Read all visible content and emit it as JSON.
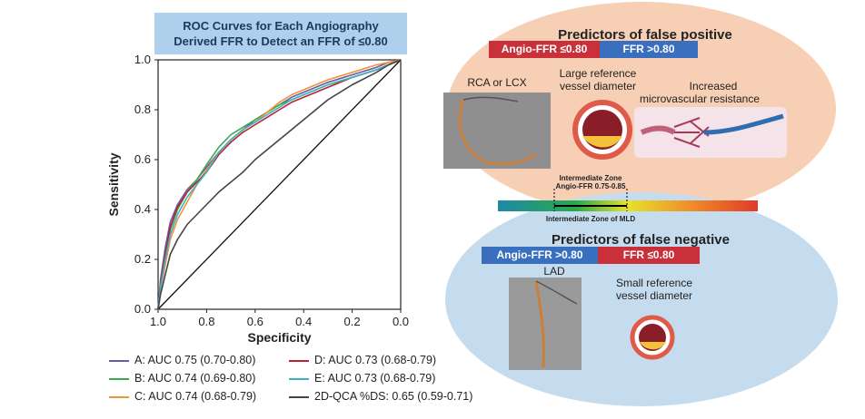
{
  "chart_data": {
    "type": "line",
    "title": [
      "ROC Curves for Each Angiography",
      "Derived FFR to Detect an FFR of ≤0.80"
    ],
    "xlabel": "Specificity",
    "ylabel": "Sensitivity",
    "xlim": [
      1.0,
      0.0
    ],
    "ylim": [
      0.0,
      1.0
    ],
    "x_ticks": [
      "1.0",
      "0.8",
      "0.6",
      "0.4",
      "0.2",
      "0.0"
    ],
    "y_ticks": [
      "0.0",
      "0.2",
      "0.4",
      "0.6",
      "0.8",
      "1.0"
    ],
    "grid": false,
    "legend_position": "bottom",
    "reference_line": true,
    "series": [
      {
        "name": "A: AUC 0.75 (0.70-0.80)",
        "color": "#6a5aa8",
        "x": [
          1.0,
          0.99,
          0.97,
          0.95,
          0.92,
          0.88,
          0.84,
          0.8,
          0.75,
          0.7,
          0.65,
          0.6,
          0.55,
          0.5,
          0.45,
          0.4,
          0.3,
          0.2,
          0.1,
          0.05,
          0.0
        ],
        "y": [
          0.0,
          0.12,
          0.25,
          0.35,
          0.42,
          0.48,
          0.52,
          0.57,
          0.63,
          0.68,
          0.72,
          0.76,
          0.79,
          0.82,
          0.85,
          0.87,
          0.91,
          0.94,
          0.97,
          0.99,
          1.0
        ]
      },
      {
        "name": "B: AUC 0.74 (0.69-0.80)",
        "color": "#3faa48",
        "x": [
          1.0,
          0.99,
          0.97,
          0.95,
          0.92,
          0.88,
          0.84,
          0.8,
          0.75,
          0.7,
          0.65,
          0.6,
          0.55,
          0.5,
          0.45,
          0.4,
          0.3,
          0.2,
          0.1,
          0.05,
          0.0
        ],
        "y": [
          0.0,
          0.1,
          0.22,
          0.32,
          0.4,
          0.47,
          0.52,
          0.58,
          0.65,
          0.7,
          0.73,
          0.76,
          0.79,
          0.82,
          0.84,
          0.86,
          0.9,
          0.93,
          0.96,
          0.98,
          1.0
        ]
      },
      {
        "name": "C: AUC 0.74 (0.68-0.79)",
        "color": "#f0923a",
        "x": [
          1.0,
          0.99,
          0.97,
          0.95,
          0.92,
          0.88,
          0.84,
          0.8,
          0.75,
          0.7,
          0.65,
          0.6,
          0.55,
          0.5,
          0.45,
          0.4,
          0.3,
          0.2,
          0.1,
          0.05,
          0.0
        ],
        "y": [
          0.0,
          0.08,
          0.18,
          0.28,
          0.36,
          0.43,
          0.5,
          0.56,
          0.63,
          0.68,
          0.72,
          0.75,
          0.79,
          0.83,
          0.86,
          0.88,
          0.92,
          0.95,
          0.98,
          0.99,
          1.0
        ]
      },
      {
        "name": "D: AUC 0.73 (0.68-0.79)",
        "color": "#b8232f",
        "x": [
          1.0,
          0.99,
          0.97,
          0.95,
          0.92,
          0.88,
          0.84,
          0.8,
          0.75,
          0.7,
          0.65,
          0.6,
          0.55,
          0.5,
          0.45,
          0.4,
          0.3,
          0.2,
          0.1,
          0.05,
          0.0
        ],
        "y": [
          0.0,
          0.1,
          0.22,
          0.33,
          0.41,
          0.47,
          0.51,
          0.55,
          0.62,
          0.67,
          0.71,
          0.74,
          0.77,
          0.8,
          0.83,
          0.85,
          0.89,
          0.93,
          0.96,
          0.98,
          1.0
        ]
      },
      {
        "name": "E: AUC 0.73 (0.68-0.79)",
        "color": "#3bb3c4",
        "x": [
          1.0,
          0.99,
          0.97,
          0.95,
          0.92,
          0.88,
          0.84,
          0.8,
          0.75,
          0.7,
          0.65,
          0.6,
          0.55,
          0.5,
          0.45,
          0.4,
          0.3,
          0.2,
          0.1,
          0.05,
          0.0
        ],
        "y": [
          0.0,
          0.09,
          0.2,
          0.3,
          0.38,
          0.45,
          0.5,
          0.55,
          0.63,
          0.68,
          0.72,
          0.75,
          0.78,
          0.81,
          0.84,
          0.86,
          0.9,
          0.93,
          0.96,
          0.98,
          1.0
        ]
      },
      {
        "name": "2D-QCA %DS: 0.65 (0.59-0.71)",
        "color": "#444444",
        "x": [
          1.0,
          0.99,
          0.97,
          0.95,
          0.92,
          0.88,
          0.84,
          0.8,
          0.75,
          0.7,
          0.65,
          0.6,
          0.55,
          0.5,
          0.45,
          0.4,
          0.3,
          0.2,
          0.1,
          0.05,
          0.0
        ],
        "y": [
          0.0,
          0.06,
          0.14,
          0.22,
          0.28,
          0.34,
          0.38,
          0.42,
          0.47,
          0.51,
          0.55,
          0.6,
          0.64,
          0.68,
          0.72,
          0.76,
          0.84,
          0.9,
          0.95,
          0.98,
          1.0
        ]
      }
    ]
  },
  "panels": {
    "fp_title": "Predictors of false positive",
    "fp_bar_left": "Angio-FFR ≤0.80",
    "fp_bar_right": "FFR >0.80",
    "fp_label_1": "RCA or LCX",
    "fp_label_2a": "Large reference",
    "fp_label_2b": "vessel diameter",
    "fp_label_3a": "Increased",
    "fp_label_3b": "microvascular resistance",
    "zone_label_1": "Intermediate Zone",
    "zone_label_2": "Angio-FFR 0.75-0.85",
    "zone_label_3": "Intermediate Zone of MLD",
    "fn_title": "Predictors of false negative",
    "fn_bar_left": "Angio-FFR >0.80",
    "fn_bar_right": "FFR ≤0.80",
    "fn_label_1": "LAD",
    "fn_label_2a": "Small reference",
    "fn_label_2b": "vessel diameter"
  },
  "colors": {
    "bar_red": "#c9303a",
    "bar_blue": "#3a6fbf",
    "fp_bg": "#f6cfb4",
    "fn_bg": "#c5dcee"
  }
}
